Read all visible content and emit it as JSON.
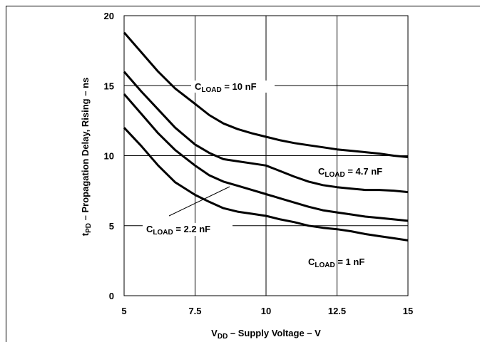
{
  "chart_data": {
    "type": "line",
    "xlabel_main": "V",
    "xlabel_sub": "DD",
    "xlabel_rest": " – Supply Voltage – V",
    "ylabel_main": "t",
    "ylabel_sub": "PD",
    "ylabel_rest": " – Propagation Delay, Rising – ns",
    "xlim": [
      5,
      15
    ],
    "ylim": [
      0,
      20
    ],
    "xticks": [
      "5",
      "7.5",
      "10",
      "12.5",
      "15"
    ],
    "yticks": [
      "0",
      "5",
      "10",
      "15",
      "20"
    ],
    "grid": true,
    "series": [
      {
        "name_main": "C",
        "name_sub": "LOAD",
        "name_rest": " = 10 nF",
        "x": [
          5,
          5.6,
          6.2,
          6.8,
          7.5,
          8,
          8.5,
          9,
          9.5,
          10,
          10.5,
          11,
          11.5,
          12,
          12.5,
          13,
          13.5,
          14,
          14.5,
          15
        ],
        "y": [
          18.8,
          17.4,
          16.0,
          14.8,
          13.7,
          12.9,
          12.3,
          11.9,
          11.6,
          11.35,
          11.1,
          10.9,
          10.75,
          10.6,
          10.45,
          10.35,
          10.25,
          10.15,
          10.0,
          9.9
        ]
      },
      {
        "name_main": "C",
        "name_sub": "LOAD",
        "name_rest": " = 4.7 nF",
        "x": [
          5,
          5.6,
          6.2,
          6.8,
          7.5,
          8,
          8.5,
          9,
          9.5,
          10,
          10.5,
          11,
          11.5,
          12,
          12.5,
          13,
          13.5,
          14,
          14.5,
          15
        ],
        "y": [
          16.0,
          14.6,
          13.3,
          12.0,
          10.8,
          10.2,
          9.75,
          9.6,
          9.45,
          9.3,
          8.9,
          8.5,
          8.15,
          7.9,
          7.75,
          7.65,
          7.55,
          7.55,
          7.5,
          7.4
        ]
      },
      {
        "name_main": "C",
        "name_sub": "LOAD",
        "name_rest": " = 2.2 nF",
        "x": [
          5,
          5.6,
          6.2,
          6.8,
          7.5,
          8,
          8.5,
          9,
          9.5,
          10,
          10.5,
          11,
          11.5,
          12,
          12.5,
          13,
          13.5,
          14,
          14.5,
          15
        ],
        "y": [
          14.4,
          13.0,
          11.6,
          10.4,
          9.3,
          8.6,
          8.15,
          7.85,
          7.55,
          7.25,
          6.95,
          6.65,
          6.35,
          6.1,
          5.95,
          5.8,
          5.65,
          5.55,
          5.45,
          5.35
        ]
      },
      {
        "name_main": "C",
        "name_sub": "LOAD",
        "name_rest": " = 1 nF",
        "x": [
          5,
          5.6,
          6.2,
          6.8,
          7.5,
          8,
          8.5,
          9,
          9.5,
          10,
          10.5,
          11,
          11.5,
          12,
          12.5,
          13,
          13.5,
          14,
          14.5,
          15
        ],
        "y": [
          12.0,
          10.7,
          9.3,
          8.1,
          7.2,
          6.7,
          6.25,
          6.0,
          5.85,
          5.7,
          5.45,
          5.25,
          5.0,
          4.85,
          4.75,
          4.6,
          4.4,
          4.25,
          4.1,
          3.95
        ]
      }
    ]
  }
}
